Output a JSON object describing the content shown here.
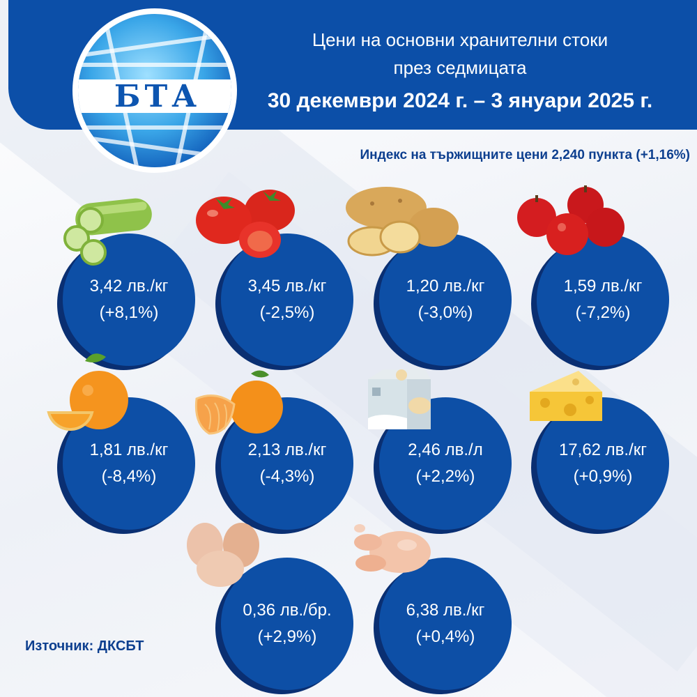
{
  "header": {
    "logo_text": "БТА",
    "title_line1": "Цени на основни хранителни стоки",
    "title_line2": "през седмицата",
    "title_line3": "30 декември 2024 г. – 3 януари 2025 г."
  },
  "index_line": "Индекс на тържищните цени 2,240 пункта (+1,16%)",
  "items": [
    {
      "icon": "cucumber-icon",
      "price": "3,42 лв./кг",
      "change": "(+8,1%)"
    },
    {
      "icon": "tomato-icon",
      "price": "3,45 лв./кг",
      "change": "(-2,5%)"
    },
    {
      "icon": "potato-icon",
      "price": "1,20 лв./кг",
      "change": "(-3,0%)"
    },
    {
      "icon": "apple-icon",
      "price": "1,59 лв./кг",
      "change": "(-7,2%)"
    },
    {
      "icon": "orange-icon",
      "price": "1,81 лв./кг",
      "change": "(-8,4%)"
    },
    {
      "icon": "tangerine-icon",
      "price": "2,13 лв./кг",
      "change": "(-4,3%)"
    },
    {
      "icon": "milk-carton-icon",
      "price": "2,46 лв./л",
      "change": "(+2,2%)"
    },
    {
      "icon": "cheese-icon",
      "price": "17,62 лв./кг",
      "change": "(+0,9%)"
    },
    {
      "icon": "eggs-icon",
      "price": "0,36 лв./бр.",
      "change": "(+2,9%)"
    },
    {
      "icon": "chicken-icon",
      "price": "6,38 лв./кг",
      "change": "(+0,4%)"
    }
  ],
  "source": "Източник: ДКСБТ",
  "colors": {
    "header_blue": "#0c4fa8",
    "circle_blue": "#0d4fa6",
    "text_dark_blue": "#0d3f8f"
  }
}
